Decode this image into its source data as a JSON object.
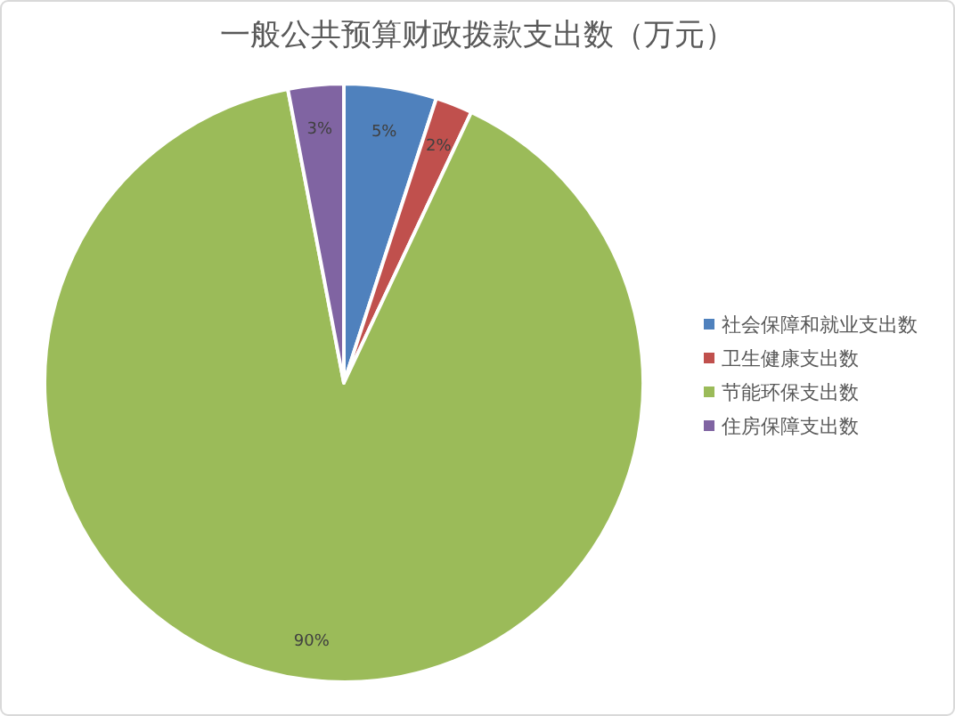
{
  "chart_data": {
    "type": "pie",
    "title": "一般公共预算财政拨款支出数（万元）",
    "categories": [
      "社会保障和就业支出数",
      "卫生健康支出数",
      "节能环保支出数",
      "住房保障支出数"
    ],
    "values": [
      5,
      2,
      90,
      3
    ],
    "colors": [
      "#4f81bd",
      "#c0504d",
      "#9bbb59",
      "#8064a2"
    ],
    "value_labels": [
      "5%",
      "2%",
      "90%",
      "3%"
    ],
    "legend": "right"
  }
}
